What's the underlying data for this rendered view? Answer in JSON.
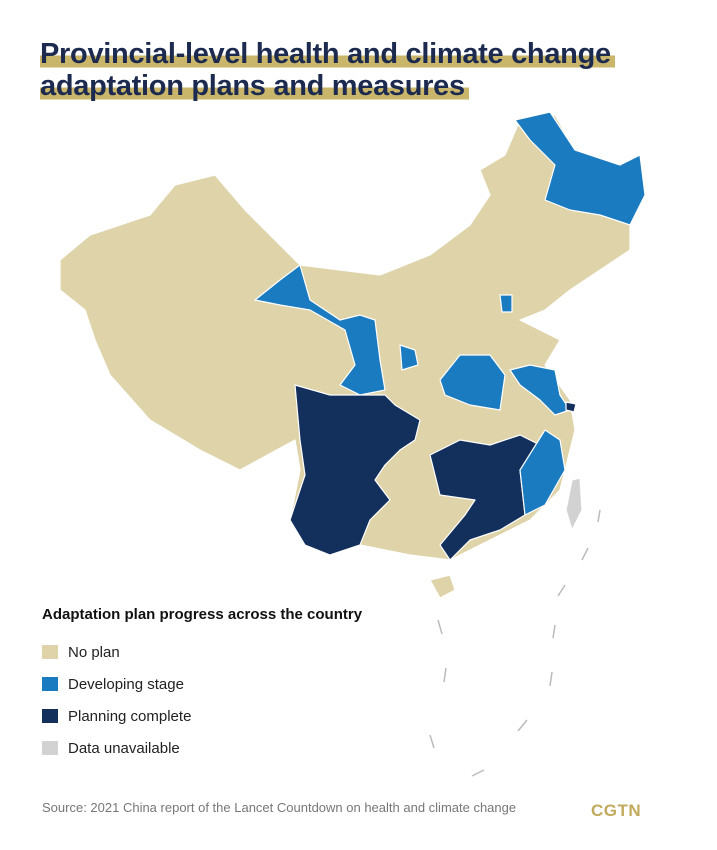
{
  "header": {
    "title_lines": [
      "Provincial-level health and climate change",
      "adaptation plans and measures"
    ]
  },
  "legend": {
    "title": "Adaptation plan progress across the country",
    "items": [
      {
        "label": "No plan",
        "color": "#ded3a9"
      },
      {
        "label": "Developing stage",
        "color": "#1b7bc0"
      },
      {
        "label": "Planning complete",
        "color": "#13305d"
      },
      {
        "label": "Data unavailable",
        "color": "#d2d2d2"
      }
    ]
  },
  "footer": {
    "source": "Source: 2021 China report of the Lancet Countdown on health and climate change",
    "logo": "CGTN"
  }
}
